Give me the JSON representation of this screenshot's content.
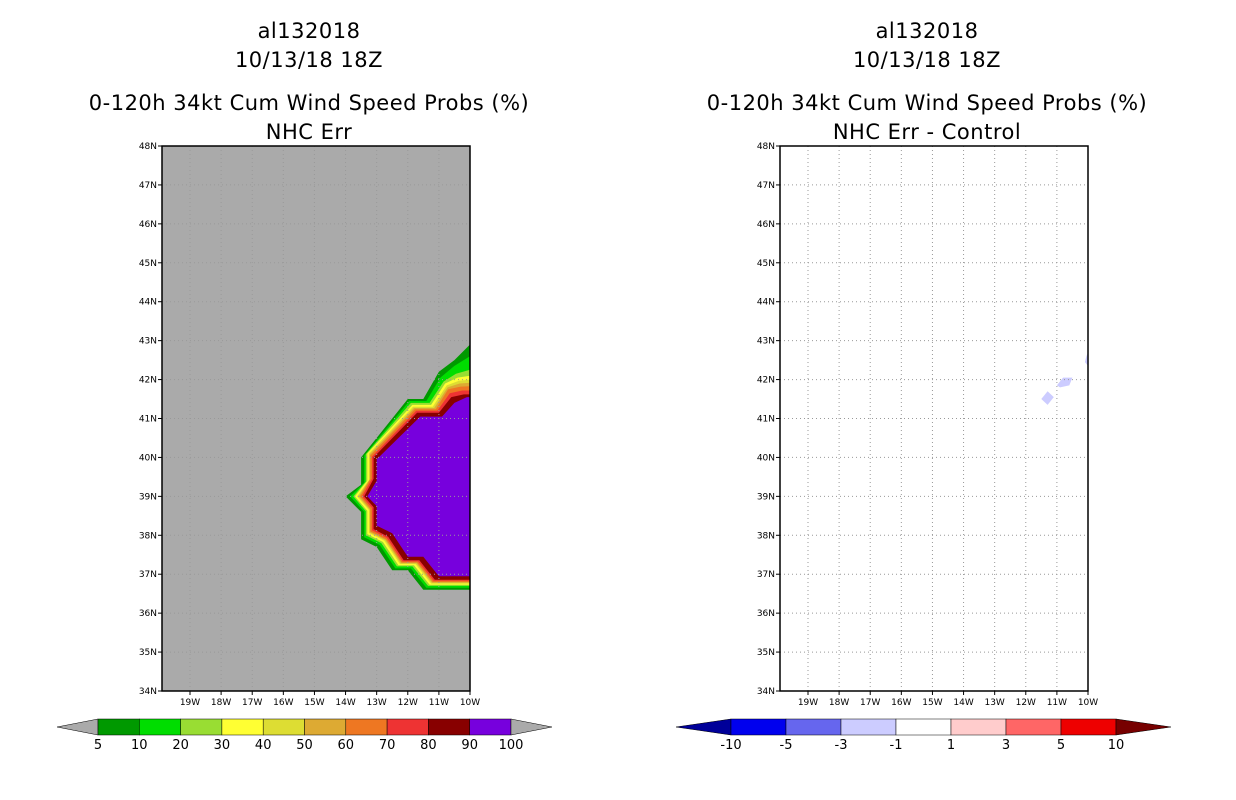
{
  "chart_data": [
    {
      "type": "heatmap",
      "title_lines": [
        "al132018",
        "10/13/18 18Z",
        "0-120h 34kt Cum Wind Speed Probs (%)",
        "NHC Err"
      ],
      "x_ticks": [
        "19W",
        "18W",
        "17W",
        "16W",
        "15W",
        "14W",
        "13W",
        "12W",
        "11W",
        "10W"
      ],
      "y_ticks": [
        "48N",
        "47N",
        "46N",
        "45N",
        "44N",
        "43N",
        "42N",
        "41N",
        "40N",
        "39N",
        "38N",
        "37N",
        "36N",
        "35N",
        "34N"
      ],
      "xlim": [
        -19.9,
        -10.0
      ],
      "ylim": [
        34,
        48
      ],
      "background_color": "#aaaaaa",
      "grid": true,
      "colorbar": {
        "labels": [
          "5",
          "10",
          "20",
          "30",
          "40",
          "50",
          "60",
          "70",
          "80",
          "90",
          "100"
        ],
        "colors": [
          "#009900",
          "#00dd00",
          "#99dd33",
          "#ffff33",
          "#dddd33",
          "#ddaa33",
          "#ee7722",
          "#ee3333",
          "#880000",
          "#7700dd"
        ],
        "under_color": "#aaaaaa",
        "over_color": "#aaaaaa"
      },
      "contour_bands": [
        {
          "min": 5,
          "max": 10,
          "color": "#009900",
          "poly": [
            [
              -10,
              36.6
            ],
            [
              -11.5,
              36.6
            ],
            [
              -12,
              37.1
            ],
            [
              -12.5,
              37.1
            ],
            [
              -13,
              37.7
            ],
            [
              -13.5,
              37.9
            ],
            [
              -13.5,
              38.6
            ],
            [
              -14,
              39
            ],
            [
              -13.5,
              39.3
            ],
            [
              -13.5,
              40
            ],
            [
              -12,
              41.5
            ],
            [
              -11.5,
              41.5
            ],
            [
              -11,
              42.2
            ],
            [
              -10.5,
              42.5
            ],
            [
              -10,
              42.9
            ]
          ]
        },
        {
          "min": 10,
          "max": 20,
          "color": "#00dd00",
          "poly": [
            [
              -10,
              36.65
            ],
            [
              -11.4,
              36.65
            ],
            [
              -11.9,
              37.15
            ],
            [
              -12.4,
              37.15
            ],
            [
              -12.9,
              37.75
            ],
            [
              -13.4,
              37.95
            ],
            [
              -13.4,
              38.6
            ],
            [
              -13.85,
              39
            ],
            [
              -13.4,
              39.35
            ],
            [
              -13.4,
              40.05
            ],
            [
              -11.95,
              41.45
            ],
            [
              -11.4,
              41.45
            ],
            [
              -10.95,
              42.05
            ],
            [
              -10.5,
              42.35
            ],
            [
              -10,
              42.6
            ]
          ]
        },
        {
          "min": 20,
          "max": 30,
          "color": "#99dd33",
          "poly": [
            [
              -10,
              36.7
            ],
            [
              -11.35,
              36.7
            ],
            [
              -11.85,
              37.2
            ],
            [
              -12.35,
              37.2
            ],
            [
              -12.85,
              37.8
            ],
            [
              -13.35,
              38
            ],
            [
              -13.35,
              38.62
            ],
            [
              -13.75,
              39
            ],
            [
              -13.35,
              39.38
            ],
            [
              -13.35,
              40.08
            ],
            [
              -11.9,
              41.4
            ],
            [
              -11.3,
              41.4
            ],
            [
              -10.85,
              41.95
            ],
            [
              -10.45,
              42.15
            ],
            [
              -10,
              42.25
            ]
          ]
        },
        {
          "min": 30,
          "max": 40,
          "color": "#ffff33",
          "poly": [
            [
              -10,
              36.73
            ],
            [
              -11.3,
              36.73
            ],
            [
              -11.8,
              37.23
            ],
            [
              -12.3,
              37.23
            ],
            [
              -12.8,
              37.83
            ],
            [
              -13.3,
              38.03
            ],
            [
              -13.3,
              38.63
            ],
            [
              -13.7,
              39
            ],
            [
              -13.3,
              39.4
            ],
            [
              -13.3,
              40.1
            ],
            [
              -11.85,
              41.35
            ],
            [
              -11.25,
              41.35
            ],
            [
              -10.8,
              41.9
            ],
            [
              -10.4,
              42.05
            ],
            [
              -10,
              42.1
            ]
          ]
        },
        {
          "min": 40,
          "max": 50,
          "color": "#dddd33",
          "poly": [
            [
              -10,
              36.76
            ],
            [
              -11.25,
              36.76
            ],
            [
              -11.75,
              37.26
            ],
            [
              -12.25,
              37.26
            ],
            [
              -12.75,
              37.86
            ],
            [
              -13.25,
              38.06
            ],
            [
              -13.25,
              38.65
            ],
            [
              -13.63,
              39
            ],
            [
              -13.25,
              39.42
            ],
            [
              -13.25,
              40.1
            ],
            [
              -11.83,
              41.3
            ],
            [
              -11.2,
              41.3
            ],
            [
              -10.75,
              41.85
            ],
            [
              -10.35,
              41.97
            ],
            [
              -10,
              42.0
            ]
          ]
        },
        {
          "min": 50,
          "max": 60,
          "color": "#ddaa33",
          "poly": [
            [
              -10,
              36.78
            ],
            [
              -11.22,
              36.78
            ],
            [
              -11.72,
              37.28
            ],
            [
              -12.22,
              37.28
            ],
            [
              -12.72,
              37.88
            ],
            [
              -13.22,
              38.08
            ],
            [
              -13.22,
              38.66
            ],
            [
              -13.58,
              39
            ],
            [
              -13.22,
              39.44
            ],
            [
              -13.22,
              40.08
            ],
            [
              -11.8,
              41.27
            ],
            [
              -11.15,
              41.27
            ],
            [
              -10.72,
              41.8
            ],
            [
              -10.33,
              41.9
            ],
            [
              -10,
              41.92
            ]
          ]
        },
        {
          "min": 60,
          "max": 70,
          "color": "#ee7722",
          "poly": [
            [
              -10,
              36.8
            ],
            [
              -11.2,
              36.8
            ],
            [
              -11.7,
              37.3
            ],
            [
              -12.2,
              37.3
            ],
            [
              -12.7,
              37.9
            ],
            [
              -13.2,
              38.1
            ],
            [
              -13.2,
              38.68
            ],
            [
              -13.53,
              39
            ],
            [
              -13.2,
              39.45
            ],
            [
              -13.2,
              40.05
            ],
            [
              -11.77,
              41.24
            ],
            [
              -11.1,
              41.24
            ],
            [
              -10.7,
              41.75
            ],
            [
              -10.3,
              41.82
            ],
            [
              -10,
              41.83
            ]
          ]
        },
        {
          "min": 70,
          "max": 80,
          "color": "#ee3333",
          "poly": [
            [
              -10,
              36.83
            ],
            [
              -11.17,
              36.83
            ],
            [
              -11.67,
              37.33
            ],
            [
              -12.17,
              37.33
            ],
            [
              -12.67,
              37.93
            ],
            [
              -13.15,
              38.13
            ],
            [
              -13.15,
              38.7
            ],
            [
              -13.47,
              39
            ],
            [
              -13.15,
              39.45
            ],
            [
              -13.15,
              40.02
            ],
            [
              -11.73,
              41.2
            ],
            [
              -11.05,
              41.2
            ],
            [
              -10.65,
              41.65
            ],
            [
              -10.25,
              41.72
            ],
            [
              -10,
              41.72
            ]
          ]
        },
        {
          "min": 80,
          "max": 90,
          "color": "#880000",
          "poly": [
            [
              -10,
              36.86
            ],
            [
              -11.13,
              36.86
            ],
            [
              -11.63,
              37.36
            ],
            [
              -12.13,
              37.36
            ],
            [
              -12.63,
              37.96
            ],
            [
              -13.1,
              38.16
            ],
            [
              -13.1,
              38.72
            ],
            [
              -13.4,
              39
            ],
            [
              -13.1,
              39.45
            ],
            [
              -13.1,
              40.0
            ],
            [
              -11.7,
              41.15
            ],
            [
              -11.0,
              41.15
            ],
            [
              -10.6,
              41.55
            ],
            [
              -10.2,
              41.62
            ],
            [
              -10,
              41.62
            ]
          ]
        },
        {
          "min": 90,
          "max": 100,
          "color": "#7700dd",
          "poly": [
            [
              -10,
              36.95
            ],
            [
              -11.0,
              36.95
            ],
            [
              -11.5,
              37.45
            ],
            [
              -12.0,
              37.45
            ],
            [
              -12.5,
              38.05
            ],
            [
              -13.0,
              38.25
            ],
            [
              -13.0,
              38.75
            ],
            [
              -13.3,
              39
            ],
            [
              -13.0,
              39.4
            ],
            [
              -13.0,
              39.95
            ],
            [
              -11.6,
              41.05
            ],
            [
              -10.9,
              41.05
            ],
            [
              -10.5,
              41.4
            ],
            [
              -10.1,
              41.55
            ],
            [
              -10,
              41.55
            ]
          ]
        }
      ]
    },
    {
      "type": "heatmap",
      "title_lines": [
        "al132018",
        "10/13/18 18Z",
        "0-120h 34kt Cum Wind Speed Probs (%)",
        "NHC Err - Control"
      ],
      "x_ticks": [
        "19W",
        "18W",
        "17W",
        "16W",
        "15W",
        "14W",
        "13W",
        "12W",
        "11W",
        "10W"
      ],
      "y_ticks": [
        "48N",
        "47N",
        "46N",
        "45N",
        "44N",
        "43N",
        "42N",
        "41N",
        "40N",
        "39N",
        "38N",
        "37N",
        "36N",
        "35N",
        "34N"
      ],
      "xlim": [
        -19.9,
        -10.0
      ],
      "ylim": [
        34,
        48
      ],
      "background_color": "#ffffff",
      "grid": true,
      "colorbar": {
        "labels": [
          "-10",
          "-5",
          "-3",
          "-1",
          "1",
          "3",
          "5",
          "10"
        ],
        "colors": [
          "#0000ee",
          "#6666ee",
          "#ccccff",
          "#ffffff",
          "#ffcccc",
          "#ff6666",
          "#ee0000"
        ],
        "under_color": "#000099",
        "over_color": "#770000"
      },
      "contour_bands": [
        {
          "min": -3,
          "max": -1,
          "color": "#ccccff",
          "poly": [
            [
              -11.5,
              41.5
            ],
            [
              -11.3,
              41.35
            ],
            [
              -11.1,
              41.55
            ],
            [
              -11.3,
              41.7
            ]
          ]
        },
        {
          "min": -3,
          "max": -1,
          "color": "#ccccff",
          "poly": [
            [
              -11.0,
              41.85
            ],
            [
              -10.8,
              42.05
            ],
            [
              -10.5,
              42.05
            ],
            [
              -10.6,
              41.85
            ],
            [
              -10.9,
              41.8
            ]
          ]
        },
        {
          "min": -3,
          "max": -1,
          "color": "#ccccff",
          "poly": [
            [
              -10.1,
              42.45
            ],
            [
              -10,
              42.35
            ],
            [
              -10,
              42.7
            ],
            [
              -10.05,
              42.6
            ]
          ]
        }
      ]
    }
  ]
}
